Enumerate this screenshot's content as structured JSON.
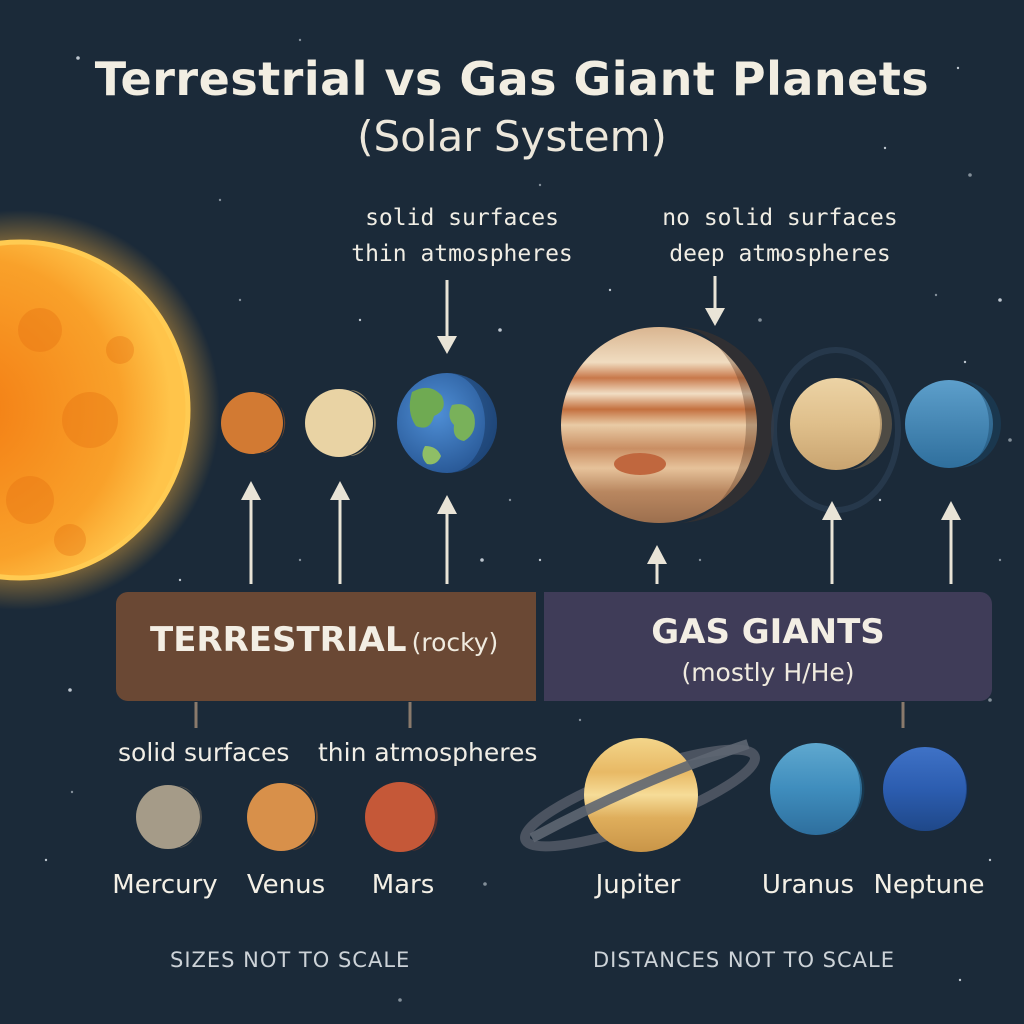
{
  "title": "Terrestrial vs Gas Giant Planets",
  "subtitle": "(Solar System)",
  "terrestrial_note": [
    "solid surfaces",
    "thin atmospheres"
  ],
  "gas_note": [
    "no solid surfaces",
    "deep atmospheres"
  ],
  "terrestrial_band": {
    "label": "TERRESTRIAL",
    "sublabel": "(rocky)"
  },
  "gas_band": {
    "label": "GAS GIANTS",
    "sublabel": "(mostly H/He)"
  },
  "terrestrial_features": [
    "solid surfaces",
    "thin atmospheres"
  ],
  "terrestrial_planets": [
    "Mercury",
    "Venus",
    "Mars"
  ],
  "gas_planets": [
    "Jupiter",
    "Uranus",
    "Neptune"
  ],
  "footer": {
    "left": "SIZES NOT TO SCALE",
    "right": "DISTANCES NOT TO SCALE"
  },
  "colors": {
    "background": "#1b2a39",
    "sun": "#f79a1e",
    "terrestrial_band": "#6a4834",
    "gas_band": "#3f3c58"
  }
}
